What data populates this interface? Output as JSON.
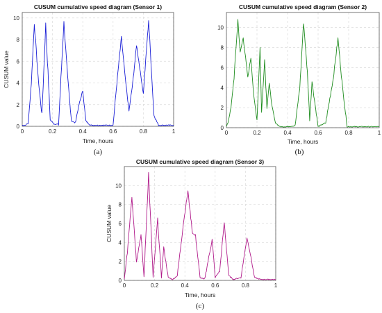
{
  "chart_data": [
    {
      "type": "line",
      "title": "CUSUM cumulative speed diagram (Sensor 1)",
      "xlabel": "Time, hours",
      "ylabel": "CUSUM value",
      "caption": "(a)",
      "color": "#1a1fd6",
      "xlim": [
        0,
        1
      ],
      "ylim": [
        0,
        10.5
      ],
      "xticks": [
        "0",
        "0.2",
        "0.4",
        "0.6",
        "0.8",
        "1"
      ],
      "yticks": [
        "0",
        "2",
        "4",
        "6",
        "8",
        "10"
      ],
      "grid": true,
      "series": [
        {
          "x": [
            0,
            0.02,
            0.04,
            0.06,
            0.08,
            0.105,
            0.13,
            0.155,
            0.185,
            0.21,
            0.24,
            0.275,
            0.3,
            0.325,
            0.35,
            0.375,
            0.4,
            0.42,
            0.45,
            0.5,
            0.55,
            0.6,
            0.625,
            0.655,
            0.68,
            0.705,
            0.73,
            0.755,
            0.78,
            0.8,
            0.815,
            0.835,
            0.85,
            0.87,
            0.9,
            0.95,
            1.0
          ],
          "y": [
            0.1,
            0.1,
            0.3,
            4.0,
            9.5,
            4.5,
            1.0,
            9.4,
            0.6,
            0.2,
            0.2,
            9.6,
            4.5,
            0.5,
            0.3,
            2.0,
            3.3,
            0.5,
            0.1,
            0.1,
            0.1,
            0.1,
            4.0,
            8.2,
            4.5,
            1.4,
            4.0,
            7.5,
            5.0,
            3.0,
            6.0,
            9.8,
            6.0,
            1.0,
            0.1,
            0.1,
            0.1
          ]
        }
      ]
    },
    {
      "type": "line",
      "title": "CUSUM cumulative speed diagram (Sensor 2)",
      "xlabel": "Time, hours",
      "ylabel": "",
      "caption": "(b)",
      "color": "#1e8c1e",
      "xlim": [
        0,
        1
      ],
      "ylim": [
        0,
        11.5
      ],
      "xticks": [
        "0",
        "0.2",
        "0.4",
        "0.6",
        "0.8",
        "1"
      ],
      "yticks": [
        "0",
        "2",
        "4",
        "6",
        "8",
        "10"
      ],
      "grid": true,
      "series": [
        {
          "x": [
            0,
            0.01,
            0.03,
            0.05,
            0.075,
            0.09,
            0.11,
            0.14,
            0.16,
            0.18,
            0.2,
            0.22,
            0.23,
            0.25,
            0.265,
            0.28,
            0.3,
            0.32,
            0.35,
            0.4,
            0.45,
            0.48,
            0.505,
            0.53,
            0.545,
            0.56,
            0.6,
            0.65,
            0.7,
            0.73,
            0.76,
            0.79,
            0.85,
            0.9,
            1.0
          ],
          "y": [
            0.1,
            0.5,
            2.0,
            5.0,
            10.8,
            7.5,
            9.0,
            5.0,
            7.0,
            3.0,
            0.8,
            8.0,
            1.5,
            6.8,
            2.0,
            4.4,
            2.0,
            0.5,
            0.1,
            0.1,
            0.2,
            4.0,
            10.5,
            5.5,
            0.8,
            4.6,
            0.1,
            0.5,
            5.0,
            8.9,
            4.0,
            0.1,
            0.1,
            0.1,
            0.1
          ]
        }
      ]
    },
    {
      "type": "line",
      "title": "CUSUM cumulative speed diagram (Sensor 3)",
      "xlabel": "Time, hours",
      "ylabel": "CUSUM value",
      "caption": "(c)",
      "color": "#b01a8a",
      "xlim": [
        0,
        1
      ],
      "ylim": [
        0,
        12
      ],
      "xticks": [
        "0",
        "0.2",
        "0.4",
        "0.6",
        "0.8",
        "1"
      ],
      "yticks": [
        "0",
        "2",
        "4",
        "6",
        "8",
        "10"
      ],
      "grid": true,
      "series": [
        {
          "x": [
            0,
            0.02,
            0.05,
            0.08,
            0.11,
            0.13,
            0.16,
            0.19,
            0.22,
            0.245,
            0.26,
            0.29,
            0.32,
            0.35,
            0.39,
            0.42,
            0.45,
            0.47,
            0.5,
            0.53,
            0.58,
            0.6,
            0.63,
            0.66,
            0.69,
            0.72,
            0.77,
            0.81,
            0.83,
            0.86,
            0.9,
            0.95,
            1.0
          ],
          "y": [
            0.1,
            3.0,
            8.9,
            2.0,
            4.8,
            0.3,
            11.3,
            0.3,
            6.4,
            0.3,
            3.5,
            0.3,
            0.1,
            0.5,
            6.0,
            9.4,
            5.0,
            4.7,
            0.3,
            0.1,
            4.3,
            0.3,
            1.0,
            6.1,
            0.5,
            0.1,
            0.3,
            4.5,
            3.0,
            0.3,
            0.1,
            0.1,
            0.1
          ]
        }
      ]
    }
  ]
}
